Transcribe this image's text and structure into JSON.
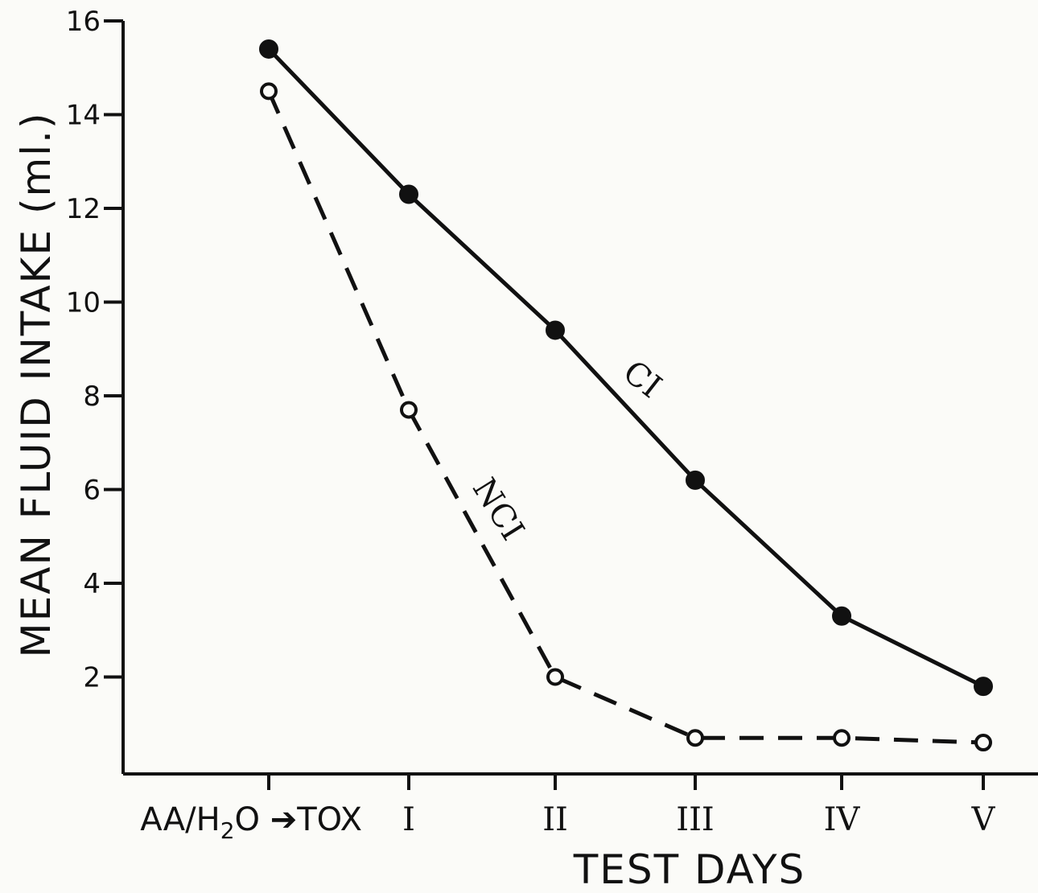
{
  "chart_data": {
    "type": "line",
    "title": "",
    "xlabel": "TEST DAYS",
    "ylabel": "MEAN FLUID INTAKE (ml.)",
    "categories": [
      "AA/H2O→TOX",
      "I",
      "II",
      "III",
      "IV",
      "V"
    ],
    "category_labels": {
      "first": {
        "prefix": "AA/H",
        "sub": "2",
        "suffix": "O ➔TOX"
      }
    },
    "ylim": [
      0,
      16
    ],
    "yticks": [
      2,
      4,
      6,
      8,
      10,
      12,
      14,
      16
    ],
    "grid": false,
    "series": [
      {
        "name": "CI",
        "values": [
          15.4,
          12.3,
          9.4,
          6.2,
          3.3,
          1.8
        ],
        "marker": "filled-circle",
        "line": "solid"
      },
      {
        "name": "NCI",
        "values": [
          14.5,
          7.7,
          2.0,
          0.7,
          0.7,
          0.6
        ],
        "marker": "open-circle",
        "line": "dashed"
      }
    ]
  }
}
